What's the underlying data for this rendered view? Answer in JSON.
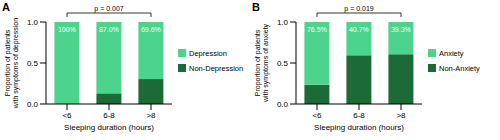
{
  "chart_data": [
    {
      "type": "bar",
      "panel": "A",
      "stacked": true,
      "legend": "right",
      "categories": [
        "<6",
        "6-8",
        ">8"
      ],
      "x_label": "Sleeping duration (hours)",
      "y_label": [
        "Proportion of patients",
        "with symptoms of depression"
      ],
      "ylim": [
        0,
        1
      ],
      "yticks": [
        {
          "value": 0,
          "label": "0.0"
        },
        0.5,
        {
          "value": 1,
          "label": "1.0"
        }
      ],
      "annotations": [
        {
          "text": "p = 0.007",
          "from": "<6",
          "to": ">8"
        }
      ],
      "series": [
        {
          "name": "Depression",
          "color": "#4cd38c",
          "values": [
            1,
            0.87,
            0.696
          ],
          "data_labels": true,
          "value_labels": [
            "100%",
            "87.0%",
            "69.6%"
          ]
        },
        {
          "name": "Non-Depression",
          "color": "#1c6b37",
          "values": [
            0,
            0.13,
            0.304
          ]
        }
      ]
    },
    {
      "type": "bar",
      "panel": "B",
      "stacked": true,
      "legend": "right",
      "categories": [
        "<6",
        "6-8",
        ">8"
      ],
      "x_label": "Sleeping duration (hours)",
      "y_label": [
        "Proportion of patients",
        "with symptoms of anxiety"
      ],
      "ylim": [
        0,
        1
      ],
      "yticks": [
        {
          "value": 0,
          "label": "0.0"
        },
        0.5,
        {
          "value": 1,
          "label": "1.0"
        }
      ],
      "annotations": [
        {
          "text": "p = 0.019",
          "from": "<6",
          "to": ">8"
        }
      ],
      "series": [
        {
          "name": "Anxiety",
          "color": "#4cd38c",
          "values": [
            0.765,
            0.407,
            0.393
          ],
          "data_labels": true,
          "value_labels": [
            "76.5%",
            "40.7%",
            "39.3%"
          ]
        },
        {
          "name": "Non-Anxiety",
          "color": "#1c6b37",
          "values": [
            0.235,
            0.593,
            0.607
          ]
        }
      ]
    }
  ]
}
